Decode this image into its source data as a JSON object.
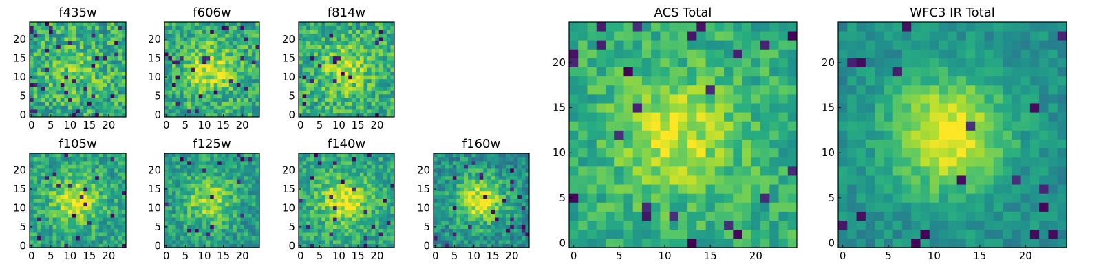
{
  "chart_data": [
    {
      "type": "heatmap",
      "title": "f435w",
      "grid": 25,
      "seed": 11,
      "peak": 0.15,
      "mean": 0.62,
      "noise": 0.22,
      "dark_prob": 0.05,
      "colormap": "viridis",
      "xlim": [
        0,
        24
      ],
      "ylim": [
        0,
        24
      ],
      "xticks": [
        0,
        5,
        10,
        15,
        20
      ],
      "yticks": [
        0,
        5,
        10,
        15,
        20
      ]
    },
    {
      "type": "heatmap",
      "title": "f606w",
      "grid": 25,
      "seed": 23,
      "peak": 0.3,
      "mean": 0.62,
      "noise": 0.2,
      "dark_prob": 0.04,
      "colormap": "viridis",
      "xlim": [
        0,
        24
      ],
      "ylim": [
        0,
        24
      ],
      "xticks": [
        0,
        5,
        10,
        15,
        20
      ],
      "yticks": [
        0,
        5,
        10,
        15,
        20
      ]
    },
    {
      "type": "heatmap",
      "title": "f814w",
      "grid": 25,
      "seed": 37,
      "peak": 0.25,
      "mean": 0.63,
      "noise": 0.2,
      "dark_prob": 0.03,
      "colormap": "viridis",
      "xlim": [
        0,
        24
      ],
      "ylim": [
        0,
        24
      ],
      "xticks": [
        0,
        5,
        10,
        15,
        20
      ],
      "yticks": [
        0,
        5,
        10,
        15,
        20
      ]
    },
    {
      "type": "heatmap",
      "title": "f105w",
      "grid": 25,
      "seed": 41,
      "peak": 0.35,
      "mean": 0.58,
      "noise": 0.17,
      "dark_prob": 0.03,
      "colormap": "viridis",
      "xlim": [
        0,
        24
      ],
      "ylim": [
        0,
        24
      ],
      "xticks": [
        0,
        5,
        10,
        15,
        20
      ],
      "yticks": [
        0,
        5,
        10,
        15,
        20
      ]
    },
    {
      "type": "heatmap",
      "title": "f125w",
      "grid": 25,
      "seed": 53,
      "peak": 0.3,
      "mean": 0.56,
      "noise": 0.17,
      "dark_prob": 0.03,
      "colormap": "viridis",
      "xlim": [
        0,
        24
      ],
      "ylim": [
        0,
        24
      ],
      "xticks": [
        0,
        5,
        10,
        15,
        20
      ],
      "yticks": [
        0,
        5,
        10,
        15,
        20
      ]
    },
    {
      "type": "heatmap",
      "title": "f140w",
      "grid": 25,
      "seed": 67,
      "peak": 0.35,
      "mean": 0.6,
      "noise": 0.16,
      "dark_prob": 0.03,
      "colormap": "viridis",
      "xlim": [
        0,
        24
      ],
      "ylim": [
        0,
        24
      ],
      "xticks": [
        0,
        5,
        10,
        15,
        20
      ],
      "yticks": [
        0,
        5,
        10,
        15,
        20
      ]
    },
    {
      "type": "heatmap",
      "title": "f160w",
      "grid": 25,
      "seed": 79,
      "peak": 0.45,
      "mean": 0.5,
      "noise": 0.17,
      "dark_prob": 0.04,
      "colormap": "viridis",
      "xlim": [
        0,
        24
      ],
      "ylim": [
        0,
        24
      ],
      "xticks": [
        0,
        5,
        10,
        15,
        20
      ],
      "yticks": [
        0,
        5,
        10,
        15,
        20
      ]
    },
    {
      "type": "heatmap",
      "title": "ACS Total",
      "grid": 25,
      "seed": 97,
      "peak": 0.3,
      "mean": 0.63,
      "noise": 0.14,
      "dark_prob": 0.04,
      "colormap": "viridis",
      "xlim": [
        0,
        24
      ],
      "ylim": [
        0,
        24
      ],
      "xticks": [
        0,
        5,
        10,
        15,
        20
      ],
      "yticks": [
        0,
        5,
        10,
        15,
        20
      ]
    },
    {
      "type": "heatmap",
      "title": "WFC3 IR Total",
      "grid": 25,
      "seed": 113,
      "peak": 0.5,
      "mean": 0.5,
      "noise": 0.1,
      "dark_prob": 0.03,
      "colormap": "viridis",
      "xlim": [
        0,
        24
      ],
      "ylim": [
        0,
        24
      ],
      "xticks": [
        0,
        5,
        10,
        15,
        20
      ],
      "yticks": [
        0,
        5,
        10,
        15,
        20
      ]
    }
  ]
}
